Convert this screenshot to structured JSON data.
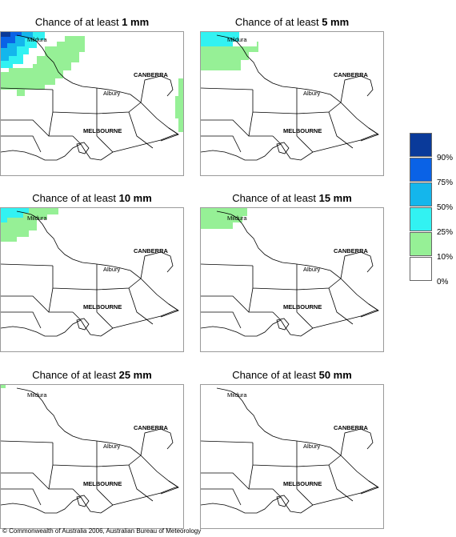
{
  "panels": [
    {
      "prefix": "Chance of at least ",
      "amount": "1 mm"
    },
    {
      "prefix": "Chance of at least ",
      "amount": "5 mm"
    },
    {
      "prefix": "Chance of at least ",
      "amount": "10 mm"
    },
    {
      "prefix": "Chance of at least ",
      "amount": "15 mm"
    },
    {
      "prefix": "Chance of at least ",
      "amount": "25 mm"
    },
    {
      "prefix": "Chance of at least ",
      "amount": "50 mm"
    }
  ],
  "places": {
    "mildura": "Mildura",
    "canberra": "CANBERRA",
    "albury": "Albury",
    "melbourne": "MELBOURNE"
  },
  "legend": {
    "labels": [
      "90%",
      "75%",
      "50%",
      "25%",
      "10%",
      "0%"
    ],
    "colors": [
      "#0a3a9a",
      "#0a62e6",
      "#14b6ec",
      "#32f2f2",
      "#96f096",
      "#ffffff"
    ]
  },
  "colors": {
    "lt10": "#96f096",
    "lt25": "#32f2f2",
    "lt50": "#14b6ec",
    "lt75": "#0a62e6",
    "lt90": "#0a3a9a",
    "border": "#000000",
    "frame": "#9a9a9a"
  },
  "copyright": "© Commonwealth of Australia 2006, Australian Bureau of Meteorology"
}
